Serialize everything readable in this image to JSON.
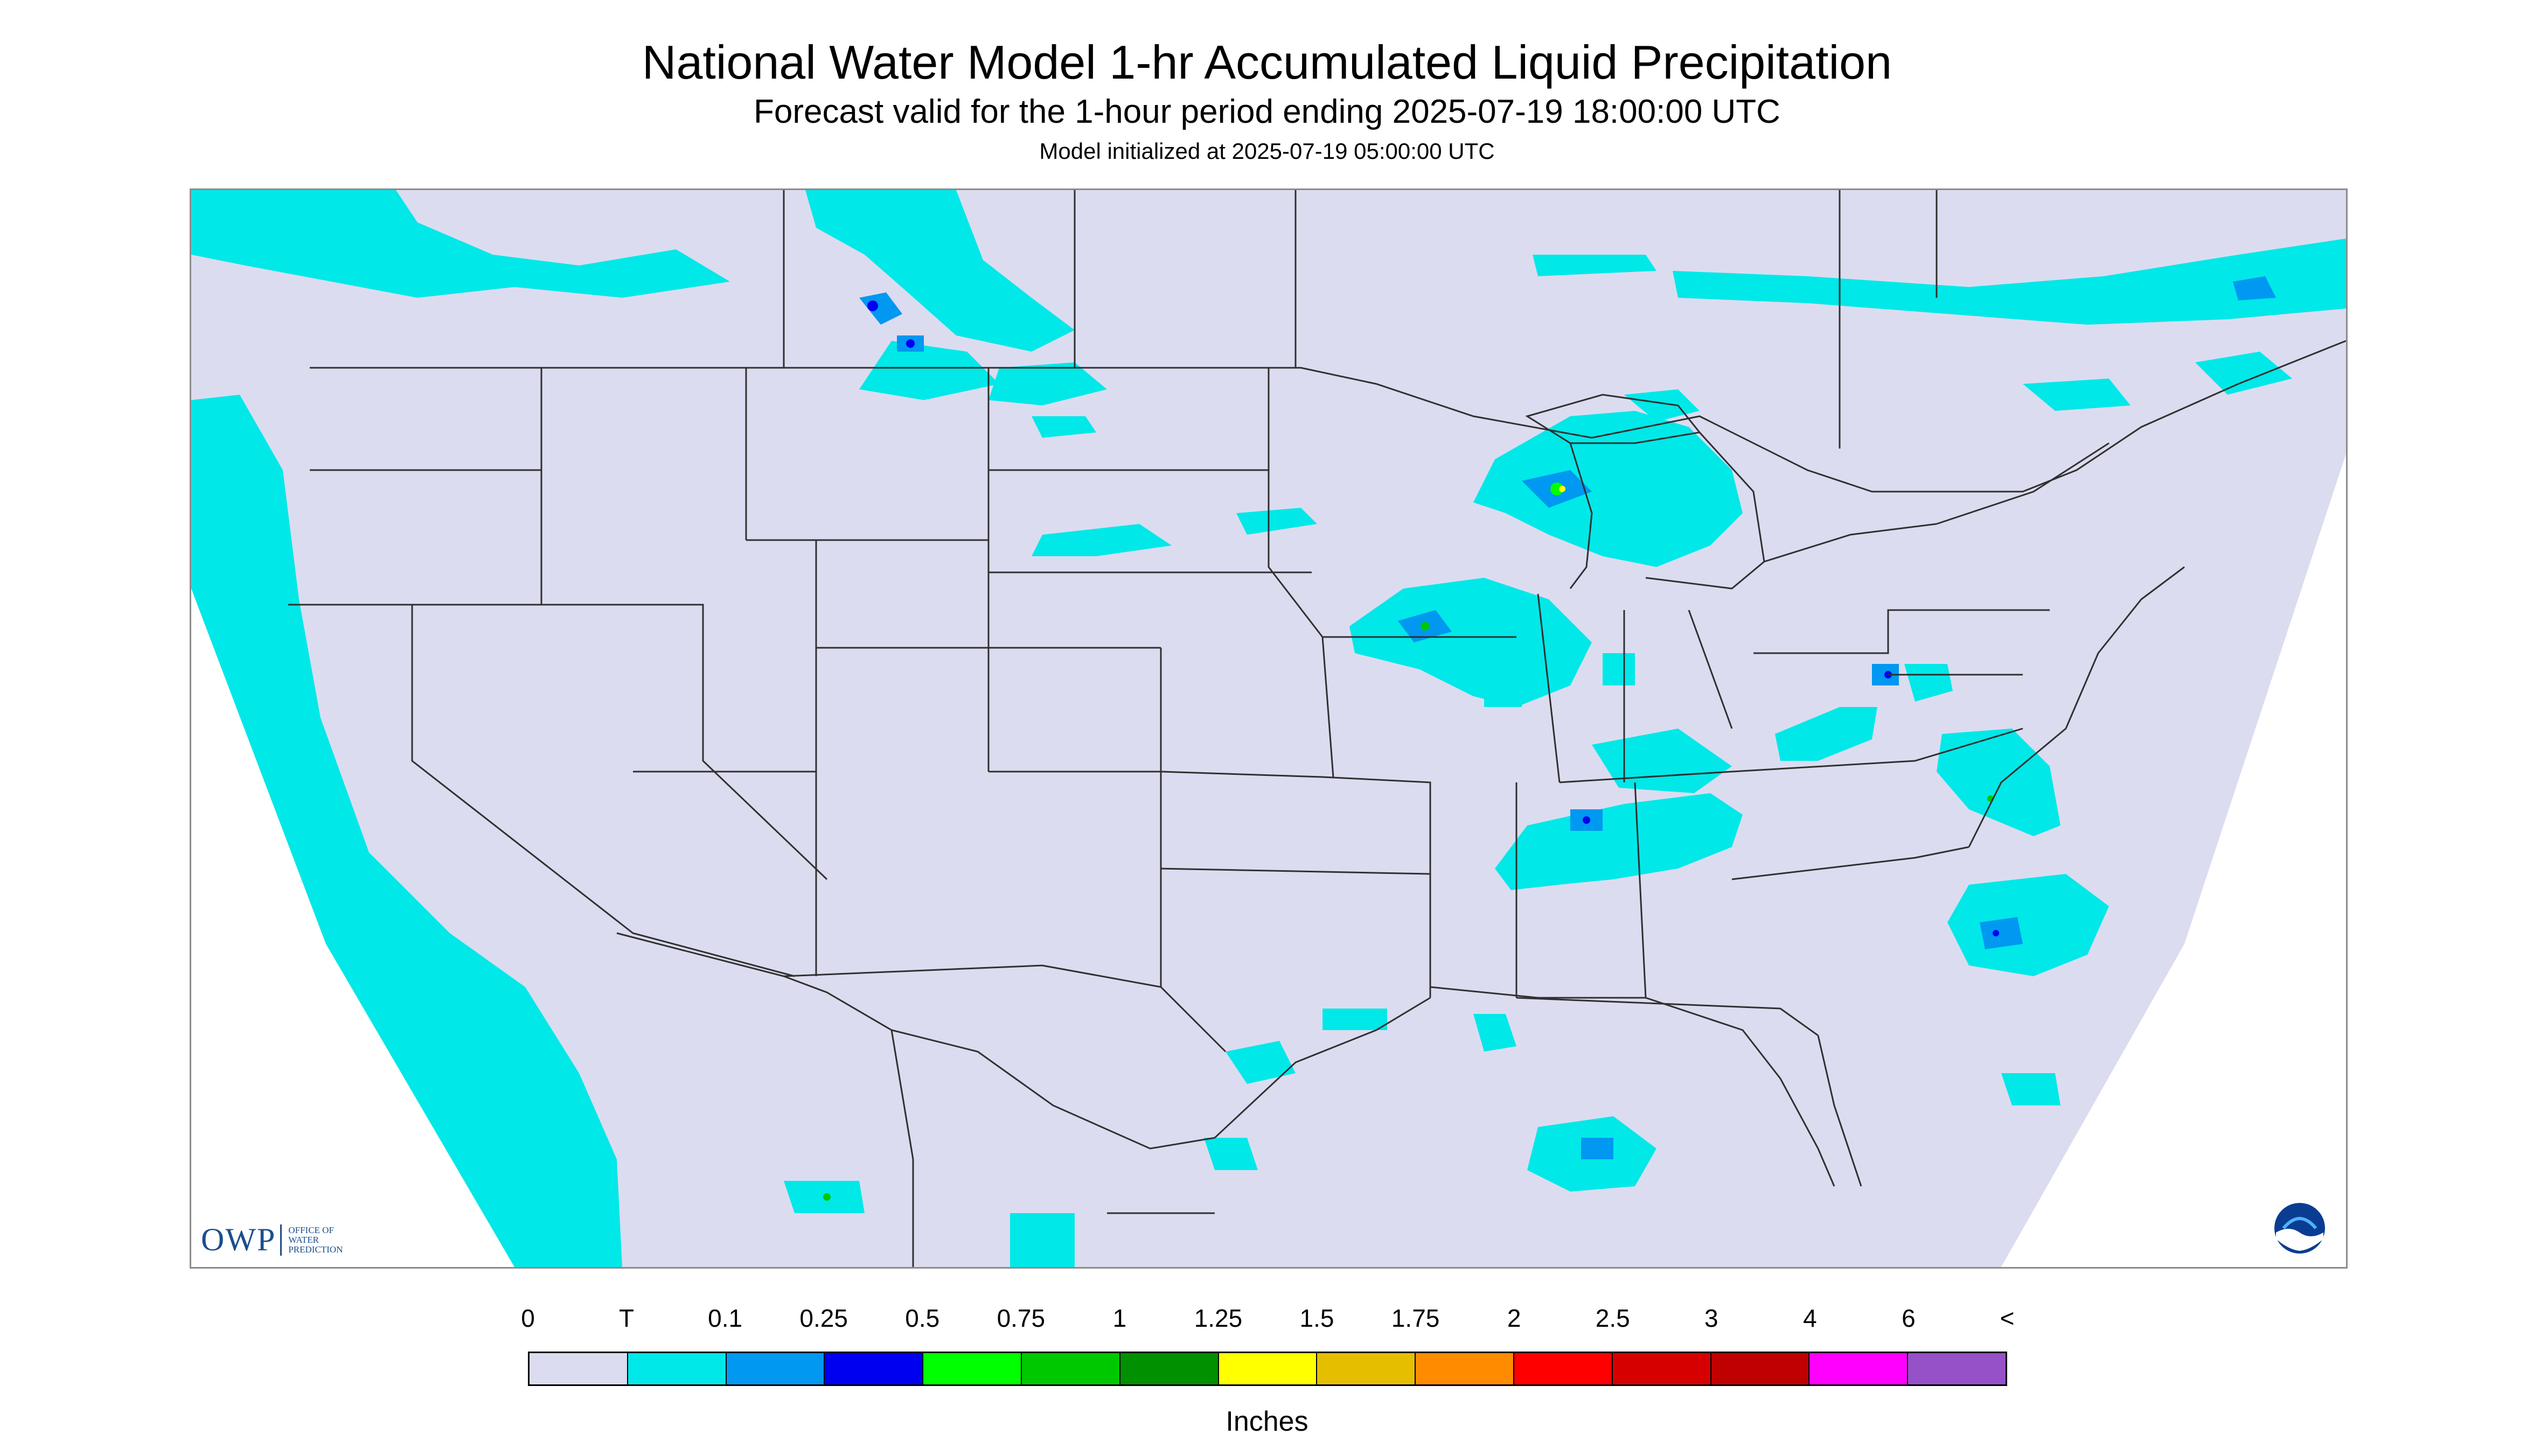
{
  "header": {
    "title": "National Water Model 1-hr Accumulated Liquid Precipitation",
    "subtitle": "Forecast valid for the 1-hour period ending 2025-07-19 18:00:00 UTC",
    "init": "Model initialized at 2025-07-19 05:00:00 UTC"
  },
  "map": {
    "region": "CONUS",
    "background_color": "#dcdcf0",
    "outside_color": "#ffffff",
    "boundary_color": "#303030",
    "logos": {
      "owp_mark": "OWP",
      "owp_text": [
        "OFFICE OF",
        "WATER",
        "PREDICTION"
      ],
      "noaa_icon": "noaa-logo-icon"
    }
  },
  "legend": {
    "labels": [
      "0",
      "T",
      "0.1",
      "0.25",
      "0.5",
      "0.75",
      "1",
      "1.25",
      "1.5",
      "1.75",
      "2",
      "2.5",
      "3",
      "4",
      "6",
      "<"
    ],
    "colors": [
      "#dcdcf0",
      "#00e8e8",
      "#0098f0",
      "#0000f0",
      "#00ff00",
      "#00c800",
      "#009000",
      "#ffff00",
      "#e6be00",
      "#ff8c00",
      "#ff0000",
      "#d70000",
      "#c00000",
      "#ff00ff",
      "#9650c8"
    ],
    "units": "Inches"
  }
}
